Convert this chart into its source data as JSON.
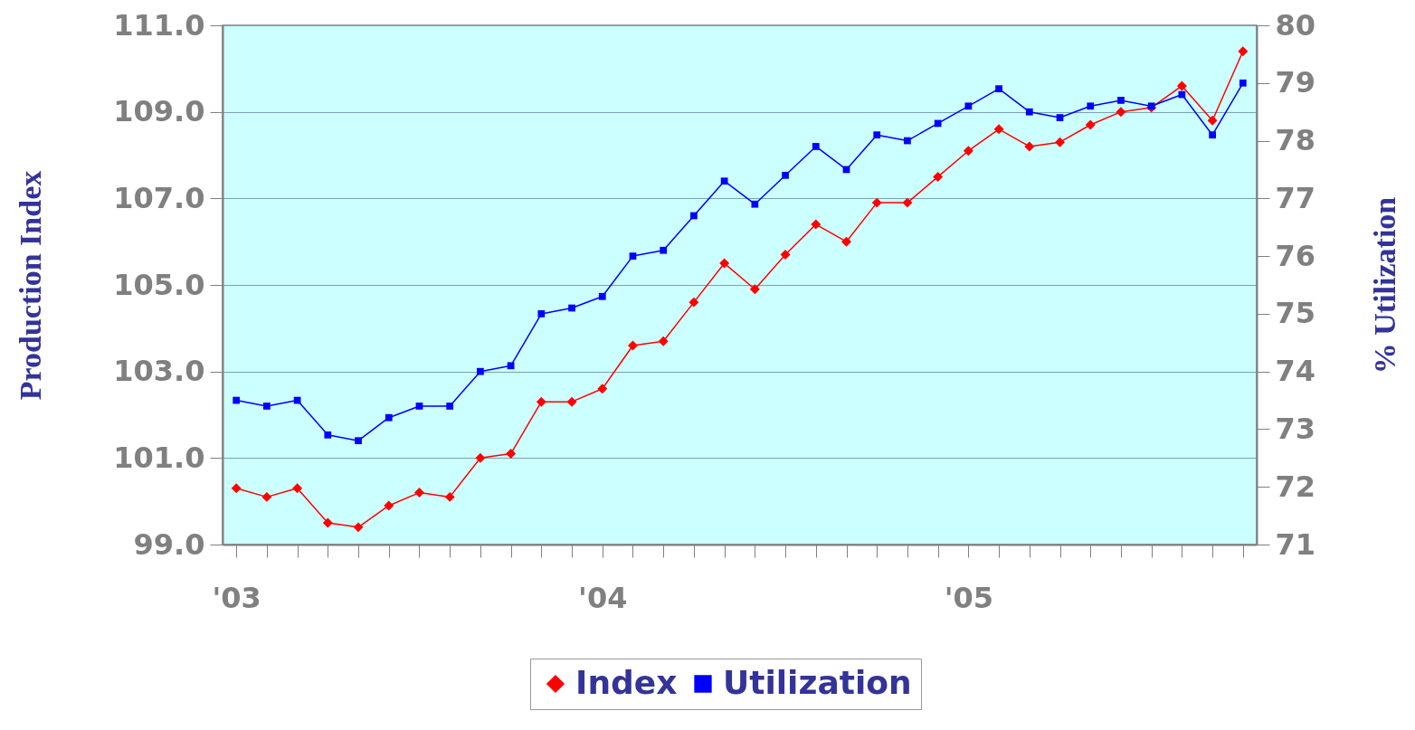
{
  "chart_data": {
    "type": "line",
    "ylabel": "Production Index",
    "y2label": "% Utilization",
    "categories": [
      "'03",
      null,
      null,
      null,
      null,
      null,
      null,
      null,
      null,
      null,
      null,
      null,
      "'04",
      null,
      null,
      null,
      null,
      null,
      null,
      null,
      null,
      null,
      null,
      null,
      "'05",
      null,
      null,
      null,
      null,
      null,
      null,
      null,
      null,
      null
    ],
    "series": [
      {
        "name": "Index",
        "color": "#ff0000",
        "marker": "diamond",
        "axis": "y",
        "values": [
          100.3,
          100.1,
          100.3,
          99.5,
          99.4,
          99.9,
          100.2,
          100.1,
          101.0,
          101.1,
          102.3,
          102.3,
          102.6,
          103.6,
          103.7,
          104.6,
          105.5,
          104.9,
          105.7,
          106.4,
          106.0,
          106.9,
          106.9,
          107.5,
          108.1,
          108.6,
          108.2,
          108.3,
          108.7,
          109.0,
          109.1,
          109.6,
          108.8,
          110.4
        ]
      },
      {
        "name": "Utilization",
        "color": "#0000ff",
        "marker": "square",
        "axis": "y2",
        "values": [
          73.5,
          73.4,
          73.5,
          72.9,
          72.8,
          73.2,
          73.4,
          73.4,
          74.0,
          74.1,
          75.0,
          75.1,
          75.3,
          76.0,
          76.1,
          76.7,
          77.3,
          76.9,
          77.4,
          77.9,
          77.5,
          78.1,
          78.0,
          78.3,
          78.6,
          78.9,
          78.5,
          78.4,
          78.6,
          78.7,
          78.6,
          78.8,
          78.1,
          79.0
        ]
      }
    ],
    "ylim": [
      99,
      111
    ],
    "yticks": [
      {
        "value": 99,
        "label": "99.0"
      },
      {
        "value": 101,
        "label": "101.0"
      },
      {
        "value": 103,
        "label": "103.0"
      },
      {
        "value": 105,
        "label": "105.0"
      },
      {
        "value": 107,
        "label": "107.0"
      },
      {
        "value": 109,
        "label": "109.0"
      },
      {
        "value": 111,
        "label": "111.0"
      }
    ],
    "y2lim": [
      71,
      80
    ],
    "y2ticks": [
      71,
      72,
      73,
      74,
      75,
      76,
      77,
      78,
      79,
      80
    ],
    "grid": "y",
    "legend": "bottom"
  }
}
